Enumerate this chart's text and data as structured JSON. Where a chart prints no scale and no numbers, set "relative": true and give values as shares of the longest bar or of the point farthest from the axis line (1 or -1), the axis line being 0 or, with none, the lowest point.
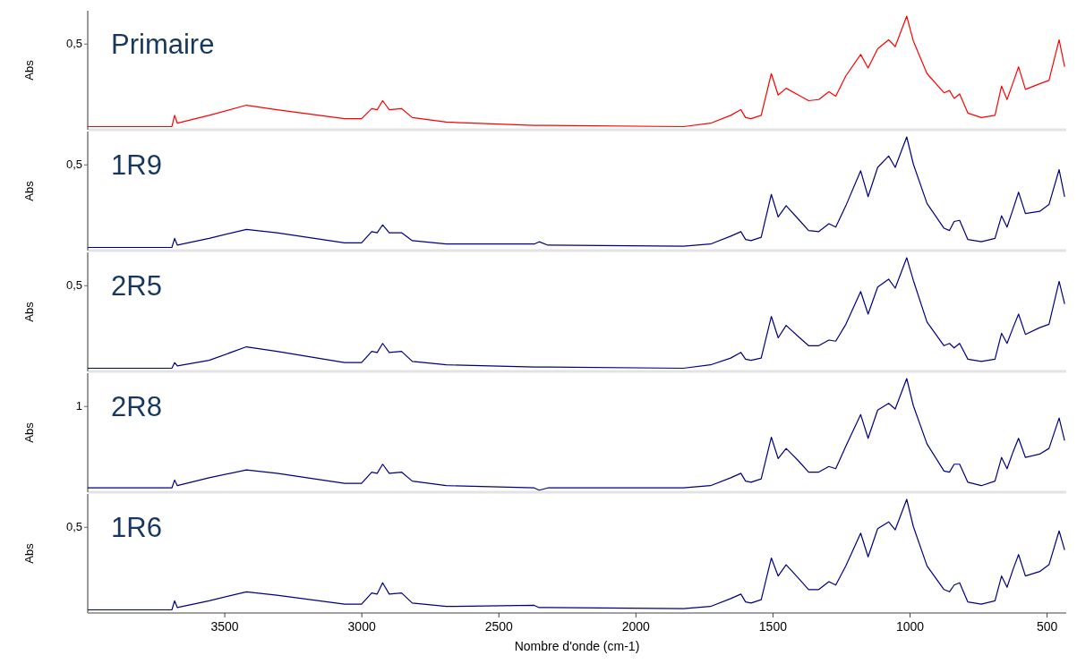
{
  "chart_data": [
    {
      "type": "line",
      "title": "Primaire",
      "ylabel": "Abs",
      "annotations": [
        "0,5"
      ],
      "relative": true,
      "tick_labels": false,
      "xlim": [
        4000,
        430
      ],
      "xticks": [
        3500,
        3000,
        2500,
        2000,
        1500,
        1000,
        500
      ],
      "x": [
        4000,
        3693,
        3683,
        3673,
        3557,
        3421,
        3310,
        3063,
        3001,
        2964,
        2944,
        2924,
        2900,
        2855,
        2816,
        2692,
        2371,
        2353,
        2321,
        1827,
        1728,
        1654,
        1617,
        1600,
        1580,
        1543,
        1506,
        1481,
        1452,
        1407,
        1370,
        1333,
        1296,
        1271,
        1234,
        1180,
        1153,
        1118,
        1078,
        1054,
        1012,
        988,
        938,
        876,
        856,
        839,
        819,
        789,
        740,
        690,
        666,
        646,
        624,
        604,
        579,
        527,
        493,
        456,
        436
      ],
      "series": [
        {
          "color": "#ff0000",
          "values": [
            0.02,
            0.02,
            0.12,
            0.05,
            0.12,
            0.21,
            0.17,
            0.09,
            0.09,
            0.18,
            0.17,
            0.25,
            0.17,
            0.18,
            0.1,
            0.06,
            0.03,
            0.03,
            0.03,
            0.02,
            0.05,
            0.12,
            0.17,
            0.1,
            0.09,
            0.12,
            0.49,
            0.3,
            0.36,
            0.3,
            0.25,
            0.26,
            0.33,
            0.29,
            0.47,
            0.66,
            0.54,
            0.71,
            0.79,
            0.73,
            1,
            0.78,
            0.49,
            0.32,
            0.34,
            0.27,
            0.31,
            0.14,
            0.1,
            0.12,
            0.38,
            0.26,
            0.41,
            0.55,
            0.35,
            0.4,
            0.43,
            0.79,
            0.55
          ]
        }
      ]
    },
    {
      "type": "line",
      "title": "1R9",
      "ylabel": "Abs",
      "annotations": [
        "0,5"
      ],
      "relative": true,
      "tick_labels": false,
      "xlim": [
        4000,
        430
      ],
      "xticks": [
        3500,
        3000,
        2500,
        2000,
        1500,
        1000,
        500
      ],
      "x": [
        4000,
        3693,
        3683,
        3673,
        3557,
        3421,
        3310,
        3063,
        3001,
        2964,
        2944,
        2924,
        2900,
        2855,
        2816,
        2692,
        2371,
        2353,
        2321,
        1827,
        1728,
        1654,
        1617,
        1600,
        1580,
        1543,
        1506,
        1481,
        1452,
        1407,
        1370,
        1333,
        1296,
        1271,
        1234,
        1180,
        1153,
        1118,
        1078,
        1054,
        1012,
        988,
        938,
        876,
        856,
        839,
        819,
        789,
        740,
        690,
        666,
        646,
        624,
        604,
        579,
        527,
        493,
        456,
        436
      ],
      "series": [
        {
          "color": "#000080",
          "values": [
            0.02,
            0.02,
            0.1,
            0.04,
            0.1,
            0.18,
            0.15,
            0.06,
            0.06,
            0.16,
            0.15,
            0.22,
            0.15,
            0.15,
            0.08,
            0.05,
            0.05,
            0.07,
            0.04,
            0.03,
            0.05,
            0.12,
            0.16,
            0.09,
            0.08,
            0.11,
            0.49,
            0.29,
            0.39,
            0.27,
            0.17,
            0.16,
            0.23,
            0.2,
            0.39,
            0.7,
            0.47,
            0.73,
            0.83,
            0.73,
            1,
            0.76,
            0.41,
            0.19,
            0.17,
            0.25,
            0.26,
            0.09,
            0.07,
            0.1,
            0.3,
            0.2,
            0.36,
            0.51,
            0.32,
            0.34,
            0.4,
            0.71,
            0.47
          ]
        }
      ]
    },
    {
      "type": "line",
      "title": "2R5",
      "ylabel": "Abs",
      "annotations": [
        "0,5"
      ],
      "relative": true,
      "tick_labels": false,
      "xlim": [
        4000,
        430
      ],
      "xticks": [
        3500,
        3000,
        2500,
        2000,
        1500,
        1000,
        500
      ],
      "x": [
        4000,
        3693,
        3683,
        3673,
        3557,
        3421,
        3310,
        3063,
        3001,
        2964,
        2944,
        2924,
        2900,
        2855,
        2816,
        2692,
        2371,
        2353,
        2321,
        1827,
        1728,
        1654,
        1617,
        1600,
        1580,
        1543,
        1506,
        1481,
        1452,
        1407,
        1370,
        1333,
        1296,
        1271,
        1234,
        1180,
        1153,
        1118,
        1078,
        1054,
        1012,
        988,
        938,
        876,
        856,
        839,
        819,
        789,
        740,
        690,
        666,
        646,
        624,
        604,
        579,
        527,
        493,
        456,
        436
      ],
      "series": [
        {
          "color": "#000080",
          "values": [
            0.02,
            0.02,
            0.07,
            0.04,
            0.09,
            0.21,
            0.17,
            0.07,
            0.07,
            0.17,
            0.16,
            0.24,
            0.16,
            0.17,
            0.08,
            0.05,
            0.03,
            0.03,
            0.03,
            0.02,
            0.05,
            0.11,
            0.16,
            0.1,
            0.09,
            0.11,
            0.48,
            0.29,
            0.4,
            0.3,
            0.22,
            0.22,
            0.27,
            0.26,
            0.41,
            0.7,
            0.5,
            0.74,
            0.81,
            0.73,
            1,
            0.8,
            0.43,
            0.22,
            0.24,
            0.2,
            0.24,
            0.1,
            0.08,
            0.1,
            0.33,
            0.24,
            0.38,
            0.5,
            0.32,
            0.38,
            0.41,
            0.79,
            0.59
          ]
        }
      ]
    },
    {
      "type": "line",
      "title": "2R8",
      "ylabel": "Abs",
      "annotations": [
        "1"
      ],
      "relative": true,
      "tick_labels": false,
      "xlim": [
        4000,
        430
      ],
      "xticks": [
        3500,
        3000,
        2500,
        2000,
        1500,
        1000,
        500
      ],
      "x": [
        4000,
        3693,
        3683,
        3673,
        3557,
        3421,
        3310,
        3063,
        3001,
        2964,
        2944,
        2924,
        2900,
        2855,
        2816,
        2692,
        2371,
        2353,
        2321,
        1827,
        1728,
        1654,
        1617,
        1600,
        1580,
        1543,
        1506,
        1481,
        1452,
        1407,
        1370,
        1333,
        1296,
        1271,
        1234,
        1180,
        1153,
        1118,
        1078,
        1054,
        1012,
        988,
        938,
        876,
        856,
        839,
        819,
        789,
        740,
        690,
        666,
        646,
        624,
        604,
        579,
        527,
        493,
        456,
        436
      ],
      "series": [
        {
          "color": "#000080",
          "values": [
            0.03,
            0.03,
            0.1,
            0.05,
            0.12,
            0.19,
            0.16,
            0.07,
            0.07,
            0.17,
            0.16,
            0.24,
            0.16,
            0.17,
            0.09,
            0.05,
            0.03,
            0.01,
            0.03,
            0.03,
            0.05,
            0.12,
            0.16,
            0.09,
            0.08,
            0.11,
            0.48,
            0.29,
            0.38,
            0.27,
            0.17,
            0.17,
            0.22,
            0.2,
            0.4,
            0.68,
            0.47,
            0.72,
            0.78,
            0.73,
            1,
            0.76,
            0.42,
            0.18,
            0.17,
            0.24,
            0.24,
            0.08,
            0.05,
            0.09,
            0.3,
            0.2,
            0.35,
            0.47,
            0.3,
            0.33,
            0.38,
            0.65,
            0.45
          ]
        }
      ]
    },
    {
      "type": "line",
      "title": "1R6",
      "ylabel": "Abs",
      "xlabel": "Nombre d'onde (cm-1)",
      "annotations": [
        "0,5"
      ],
      "relative": true,
      "xlim": [
        4000,
        430
      ],
      "xticks": [
        3500,
        3000,
        2500,
        2000,
        1500,
        1000,
        500
      ],
      "x": [
        4000,
        3693,
        3683,
        3673,
        3557,
        3421,
        3310,
        3063,
        3001,
        2964,
        2944,
        2924,
        2900,
        2855,
        2816,
        2692,
        2371,
        2353,
        2321,
        1827,
        1728,
        1654,
        1617,
        1600,
        1580,
        1543,
        1506,
        1481,
        1452,
        1407,
        1370,
        1333,
        1296,
        1271,
        1234,
        1180,
        1153,
        1118,
        1078,
        1054,
        1012,
        988,
        938,
        876,
        856,
        839,
        819,
        789,
        740,
        690,
        666,
        646,
        624,
        604,
        579,
        527,
        493,
        456,
        436
      ],
      "series": [
        {
          "color": "#000080",
          "values": [
            0.02,
            0.02,
            0.1,
            0.04,
            0.1,
            0.18,
            0.15,
            0.07,
            0.07,
            0.17,
            0.16,
            0.26,
            0.16,
            0.17,
            0.08,
            0.05,
            0.06,
            0.04,
            0.04,
            0.03,
            0.05,
            0.12,
            0.16,
            0.09,
            0.08,
            0.11,
            0.48,
            0.32,
            0.42,
            0.3,
            0.2,
            0.2,
            0.27,
            0.24,
            0.41,
            0.7,
            0.49,
            0.74,
            0.8,
            0.73,
            1,
            0.76,
            0.41,
            0.2,
            0.18,
            0.24,
            0.26,
            0.09,
            0.07,
            0.1,
            0.32,
            0.22,
            0.38,
            0.51,
            0.32,
            0.36,
            0.42,
            0.72,
            0.55
          ]
        }
      ]
    }
  ]
}
